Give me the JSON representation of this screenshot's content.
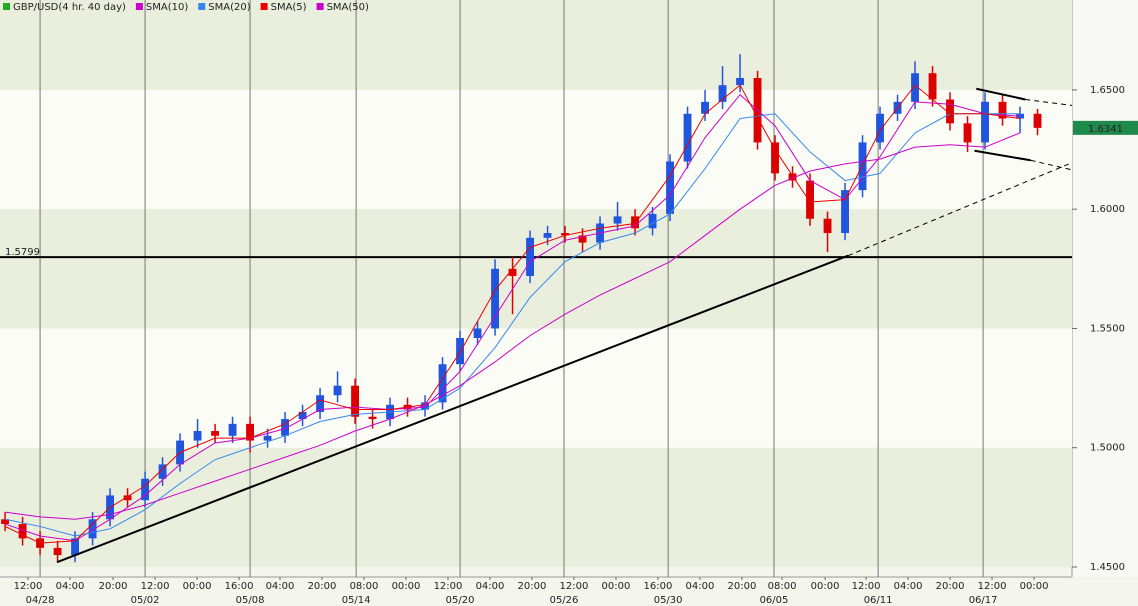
{
  "chart_data": {
    "type": "candlestick",
    "title": "GBP/USD(4 hr. 40 day)",
    "title_color": "#22aa22",
    "up_color": "#2255dd",
    "down_color": "#dd0000",
    "xlim": [
      -0.29,
      60.97
    ],
    "ylim": [
      1.4458,
      1.6877
    ],
    "yticks": [
      {
        "value": 1.45,
        "label": "1.4500"
      },
      {
        "value": 1.5,
        "label": "1.5000"
      },
      {
        "value": 1.55,
        "label": "1.5500"
      },
      {
        "value": 1.6,
        "label": "1.6000"
      },
      {
        "value": 1.65,
        "label": "1.6500"
      }
    ],
    "xticks": [
      {
        "value": 1.31,
        "label": "12:00"
      },
      {
        "value": 3.71,
        "label": "04:00"
      },
      {
        "value": 6.17,
        "label": "20:00"
      },
      {
        "value": 8.57,
        "label": "12:00"
      },
      {
        "value": 10.97,
        "label": "00:00"
      },
      {
        "value": 13.37,
        "label": "16:00"
      },
      {
        "value": 15.71,
        "label": "04:00"
      },
      {
        "value": 18.11,
        "label": "20:00"
      },
      {
        "value": 20.51,
        "label": "08:00"
      },
      {
        "value": 22.91,
        "label": "00:00"
      },
      {
        "value": 25.31,
        "label": "12:00"
      },
      {
        "value": 27.71,
        "label": "04:00"
      },
      {
        "value": 30.11,
        "label": "20:00"
      },
      {
        "value": 32.51,
        "label": "12:00"
      },
      {
        "value": 34.91,
        "label": "00:00"
      },
      {
        "value": 37.31,
        "label": "16:00"
      },
      {
        "value": 39.71,
        "label": "04:00"
      },
      {
        "value": 42.11,
        "label": "20:00"
      },
      {
        "value": 44.4,
        "label": "08:00"
      },
      {
        "value": 46.86,
        "label": "00:00"
      },
      {
        "value": 49.2,
        "label": "12:00"
      },
      {
        "value": 51.6,
        "label": "04:00"
      },
      {
        "value": 54,
        "label": "20:00"
      },
      {
        "value": 56.4,
        "label": "12:00"
      },
      {
        "value": 58.8,
        "label": "00:00"
      }
    ],
    "date_ticks": [
      {
        "value": 2,
        "label": "04/28"
      },
      {
        "value": 8,
        "label": "05/02"
      },
      {
        "value": 14,
        "label": "05/08"
      },
      {
        "value": 20.06,
        "label": "05/14"
      },
      {
        "value": 26,
        "label": "05/20"
      },
      {
        "value": 31.94,
        "label": "05/26"
      },
      {
        "value": 37.89,
        "label": "05/30"
      },
      {
        "value": 43.94,
        "label": "06/05"
      },
      {
        "value": 49.89,
        "label": "06/11"
      },
      {
        "value": 55.89,
        "label": "06/17"
      }
    ],
    "open": [
      1.47,
      1.468,
      1.462,
      1.458,
      1.455,
      1.462,
      1.47,
      1.48,
      1.478,
      1.487,
      1.493,
      1.503,
      1.507,
      1.505,
      1.51,
      1.503,
      1.505,
      1.512,
      1.515,
      1.522,
      1.526,
      1.513,
      1.512,
      1.518,
      1.516,
      1.519,
      1.535,
      1.546,
      1.55,
      1.575,
      1.572,
      1.588,
      1.59,
      1.589,
      1.586,
      1.594,
      1.597,
      1.592,
      1.598,
      1.62,
      1.64,
      1.645,
      1.652,
      1.655,
      1.628,
      1.615,
      1.612,
      1.596,
      1.59,
      1.608,
      1.628,
      1.64,
      1.645,
      1.657,
      1.646,
      1.636,
      1.628,
      1.645,
      1.638,
      1.64
    ],
    "high": [
      1.473,
      1.471,
      1.465,
      1.461,
      1.465,
      1.473,
      1.483,
      1.483,
      1.49,
      1.496,
      1.506,
      1.512,
      1.51,
      1.513,
      1.513,
      1.508,
      1.515,
      1.518,
      1.525,
      1.532,
      1.529,
      1.516,
      1.521,
      1.521,
      1.522,
      1.538,
      1.549,
      1.553,
      1.579,
      1.58,
      1.591,
      1.593,
      1.593,
      1.592,
      1.597,
      1.603,
      1.6,
      1.601,
      1.623,
      1.643,
      1.65,
      1.66,
      1.665,
      1.658,
      1.631,
      1.618,
      1.615,
      1.599,
      1.611,
      1.631,
      1.643,
      1.648,
      1.662,
      1.66,
      1.649,
      1.639,
      1.649,
      1.648,
      1.643,
      1.642
    ],
    "low": [
      1.465,
      1.459,
      1.455,
      1.452,
      1.452,
      1.459,
      1.467,
      1.475,
      1.475,
      1.484,
      1.49,
      1.5,
      1.502,
      1.502,
      1.498,
      1.5,
      1.502,
      1.509,
      1.512,
      1.519,
      1.51,
      1.508,
      1.509,
      1.513,
      1.513,
      1.516,
      1.532,
      1.543,
      1.547,
      1.556,
      1.569,
      1.585,
      1.586,
      1.582,
      1.583,
      1.591,
      1.589,
      1.589,
      1.595,
      1.617,
      1.637,
      1.642,
      1.649,
      1.625,
      1.612,
      1.609,
      1.593,
      1.582,
      1.587,
      1.605,
      1.625,
      1.637,
      1.642,
      1.643,
      1.633,
      1.624,
      1.625,
      1.635,
      1.632,
      1.631
    ],
    "close": [
      1.468,
      1.462,
      1.458,
      1.455,
      1.462,
      1.47,
      1.48,
      1.478,
      1.487,
      1.493,
      1.503,
      1.507,
      1.505,
      1.51,
      1.503,
      1.505,
      1.512,
      1.515,
      1.522,
      1.526,
      1.513,
      1.512,
      1.518,
      1.516,
      1.519,
      1.535,
      1.546,
      1.55,
      1.575,
      1.572,
      1.588,
      1.59,
      1.589,
      1.586,
      1.594,
      1.597,
      1.592,
      1.598,
      1.62,
      1.64,
      1.645,
      1.652,
      1.655,
      1.628,
      1.615,
      1.612,
      1.596,
      1.59,
      1.608,
      1.628,
      1.64,
      1.645,
      1.657,
      1.646,
      1.636,
      1.628,
      1.645,
      1.638,
      1.64,
      1.6341
    ],
    "series": [
      {
        "name": "SMA(10)",
        "color": "#cc00cc",
        "x": [
          0,
          2,
          4,
          6,
          8,
          10,
          12,
          14,
          16,
          18,
          20,
          22,
          24,
          26,
          28,
          30,
          32,
          34,
          36,
          38,
          40,
          42,
          44,
          46,
          48,
          50,
          52,
          54,
          56,
          58
        ],
        "values": [
          1.468,
          1.463,
          1.461,
          1.47,
          1.48,
          1.493,
          1.502,
          1.504,
          1.508,
          1.516,
          1.517,
          1.516,
          1.517,
          1.532,
          1.555,
          1.578,
          1.587,
          1.59,
          1.593,
          1.606,
          1.63,
          1.648,
          1.635,
          1.612,
          1.604,
          1.622,
          1.645,
          1.644,
          1.64,
          1.639
        ]
      },
      {
        "name": "SMA(20)",
        "color": "#3388ee",
        "x": [
          0,
          2,
          4,
          6,
          8,
          10,
          12,
          14,
          16,
          18,
          20,
          22,
          24,
          26,
          28,
          30,
          32,
          34,
          36,
          38,
          40,
          42,
          44,
          46,
          48,
          50,
          52,
          54,
          56,
          58
        ],
        "values": [
          1.47,
          1.467,
          1.463,
          1.466,
          1.474,
          1.485,
          1.495,
          1.5,
          1.505,
          1.511,
          1.514,
          1.515,
          1.516,
          1.525,
          1.542,
          1.563,
          1.578,
          1.586,
          1.59,
          1.598,
          1.617,
          1.638,
          1.64,
          1.624,
          1.612,
          1.615,
          1.632,
          1.64,
          1.64,
          1.64
        ]
      },
      {
        "name": "SMA(5)",
        "color": "#ee0000",
        "x": [
          0,
          2,
          4,
          6,
          8,
          10,
          12,
          14,
          16,
          18,
          20,
          22,
          24,
          26,
          28,
          30,
          32,
          34,
          36,
          38,
          40,
          42,
          44,
          46,
          48,
          50,
          52,
          54,
          56,
          58
        ],
        "values": [
          1.467,
          1.46,
          1.461,
          1.475,
          1.484,
          1.498,
          1.504,
          1.504,
          1.51,
          1.52,
          1.516,
          1.516,
          1.518,
          1.54,
          1.566,
          1.584,
          1.589,
          1.592,
          1.594,
          1.614,
          1.64,
          1.652,
          1.625,
          1.603,
          1.604,
          1.633,
          1.652,
          1.64,
          1.64,
          1.638
        ]
      },
      {
        "name": "SMA(50)",
        "color": "#cc00cc",
        "x": [
          0,
          2,
          4,
          6,
          8,
          10,
          12,
          14,
          16,
          18,
          20,
          22,
          24,
          26,
          28,
          30,
          32,
          34,
          36,
          38,
          40,
          42,
          44,
          46,
          48,
          50,
          52,
          54,
          56,
          58
        ],
        "values": [
          1.473,
          1.471,
          1.47,
          1.472,
          1.476,
          1.481,
          1.486,
          1.491,
          1.496,
          1.501,
          1.507,
          1.512,
          1.518,
          1.526,
          1.536,
          1.547,
          1.556,
          1.564,
          1.571,
          1.578,
          1.589,
          1.6,
          1.61,
          1.616,
          1.619,
          1.621,
          1.626,
          1.627,
          1.626,
          1.632
        ]
      }
    ],
    "hline": {
      "value": 1.5799,
      "label": "1.5799"
    },
    "trendlines": [
      {
        "x": [
          2.97,
          48.17
        ],
        "y": [
          1.452,
          1.5805
        ],
        "style": "solid"
      },
      {
        "x": [
          48.17,
          60.97
        ],
        "y": [
          1.5805,
          1.6195
        ],
        "style": "dashed"
      },
      {
        "x": [
          55.5,
          58.3
        ],
        "y": [
          1.6505,
          1.646
        ],
        "style": "solid"
      },
      {
        "x": [
          58.3,
          60.97
        ],
        "y": [
          1.646,
          1.6435
        ],
        "style": "dashed"
      },
      {
        "x": [
          55.4,
          58.6
        ],
        "y": [
          1.6245,
          1.6205
        ],
        "style": "solid"
      },
      {
        "x": [
          58.6,
          60.97
        ],
        "y": [
          1.6205,
          1.6165
        ],
        "style": "dashed"
      }
    ],
    "last_price_color": "#1f8a4c"
  }
}
